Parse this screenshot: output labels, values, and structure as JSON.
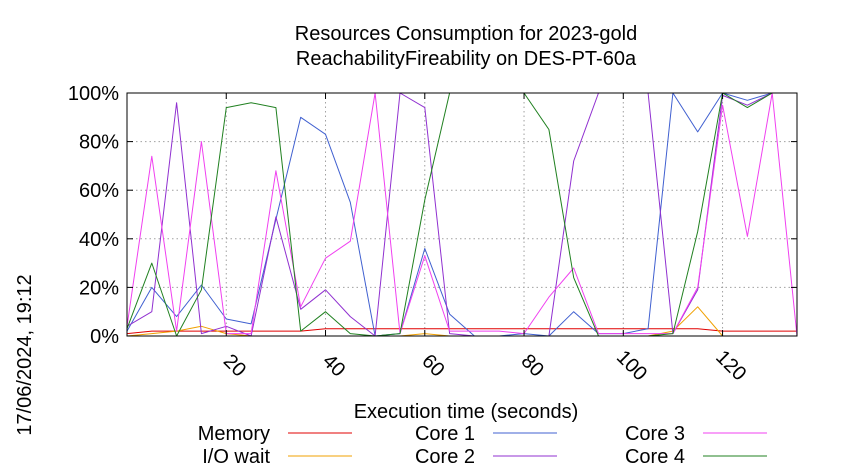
{
  "chart_data": {
    "type": "line",
    "title": [
      "Resources Consumption for 2023-gold",
      "ReachabilityFireability on DES-PT-60a"
    ],
    "xlabel": "Execution time (seconds)",
    "ylabel": "",
    "side_label": "17/06/2024, 19:12",
    "xlim": [
      0,
      135
    ],
    "ylim": [
      0,
      100
    ],
    "x_ticks": [
      20,
      40,
      60,
      80,
      100,
      120
    ],
    "y_ticks": [
      0,
      20,
      40,
      60,
      80,
      100
    ],
    "y_tick_labels": [
      "0%",
      "20%",
      "40%",
      "60%",
      "80%",
      "100%"
    ],
    "grid": true,
    "legend_position": "bottom",
    "series": [
      {
        "name": "Memory",
        "color": "#e00000",
        "points": [
          [
            0,
            1
          ],
          [
            5,
            2
          ],
          [
            10,
            2
          ],
          [
            15,
            2
          ],
          [
            20,
            2
          ],
          [
            25,
            2
          ],
          [
            30,
            2
          ],
          [
            35,
            2
          ],
          [
            40,
            3
          ],
          [
            45,
            3
          ],
          [
            50,
            3
          ],
          [
            55,
            3
          ],
          [
            60,
            3
          ],
          [
            65,
            3
          ],
          [
            70,
            3
          ],
          [
            75,
            3
          ],
          [
            80,
            3
          ],
          [
            85,
            3
          ],
          [
            90,
            3
          ],
          [
            95,
            3
          ],
          [
            100,
            3
          ],
          [
            105,
            3
          ],
          [
            110,
            3
          ],
          [
            115,
            3
          ],
          [
            120,
            2
          ],
          [
            125,
            2
          ],
          [
            130,
            2
          ],
          [
            135,
            2
          ]
        ]
      },
      {
        "name": "I/O wait",
        "color": "#f0a000",
        "points": [
          [
            0,
            0
          ],
          [
            5,
            1
          ],
          [
            10,
            2
          ],
          [
            15,
            4
          ],
          [
            20,
            1
          ],
          [
            25,
            0
          ],
          [
            30,
            0
          ],
          [
            35,
            0
          ],
          [
            40,
            0
          ],
          [
            45,
            0
          ],
          [
            50,
            0
          ],
          [
            55,
            0
          ],
          [
            60,
            1
          ],
          [
            65,
            0
          ],
          [
            70,
            0
          ],
          [
            75,
            0
          ],
          [
            80,
            0
          ],
          [
            85,
            0
          ],
          [
            90,
            0
          ],
          [
            95,
            0
          ],
          [
            100,
            0
          ],
          [
            105,
            0
          ],
          [
            110,
            2
          ],
          [
            115,
            12
          ],
          [
            120,
            0
          ],
          [
            125,
            0
          ],
          [
            130,
            0
          ],
          [
            135,
            0
          ]
        ]
      },
      {
        "name": "Core 1",
        "color": "#4060d0",
        "points": [
          [
            0,
            2
          ],
          [
            5,
            20
          ],
          [
            10,
            8
          ],
          [
            15,
            21
          ],
          [
            20,
            7
          ],
          [
            25,
            5
          ],
          [
            30,
            48
          ],
          [
            35,
            90
          ],
          [
            40,
            83
          ],
          [
            45,
            55
          ],
          [
            50,
            0
          ],
          [
            55,
            1
          ],
          [
            60,
            36
          ],
          [
            65,
            9
          ],
          [
            70,
            0
          ],
          [
            75,
            0
          ],
          [
            80,
            1
          ],
          [
            85,
            0
          ],
          [
            90,
            10
          ],
          [
            95,
            1
          ],
          [
            100,
            1
          ],
          [
            105,
            3
          ],
          [
            110,
            100
          ],
          [
            115,
            84
          ],
          [
            120,
            100
          ],
          [
            125,
            97
          ],
          [
            130,
            100
          ],
          [
            135,
            100
          ]
        ]
      },
      {
        "name": "Core 2",
        "color": "#9030d0",
        "points": [
          [
            0,
            4
          ],
          [
            5,
            10
          ],
          [
            10,
            96
          ],
          [
            15,
            1
          ],
          [
            20,
            4
          ],
          [
            25,
            0
          ],
          [
            30,
            49
          ],
          [
            35,
            11
          ],
          [
            40,
            19
          ],
          [
            45,
            8
          ],
          [
            50,
            0
          ],
          [
            55,
            100
          ],
          [
            60,
            94
          ],
          [
            65,
            1
          ],
          [
            70,
            0
          ],
          [
            75,
            0
          ],
          [
            80,
            0
          ],
          [
            85,
            0
          ],
          [
            90,
            72
          ],
          [
            95,
            100
          ],
          [
            100,
            100
          ],
          [
            105,
            100
          ],
          [
            110,
            1
          ],
          [
            115,
            19
          ],
          [
            120,
            99
          ],
          [
            125,
            95
          ],
          [
            130,
            100
          ],
          [
            135,
            100
          ]
        ]
      },
      {
        "name": "Core 3",
        "color": "#f040f0",
        "points": [
          [
            0,
            4
          ],
          [
            5,
            74
          ],
          [
            10,
            2
          ],
          [
            15,
            80
          ],
          [
            20,
            1
          ],
          [
            25,
            1
          ],
          [
            30,
            68
          ],
          [
            35,
            12
          ],
          [
            40,
            32
          ],
          [
            45,
            39
          ],
          [
            50,
            100
          ],
          [
            55,
            1
          ],
          [
            60,
            33
          ],
          [
            65,
            2
          ],
          [
            70,
            2
          ],
          [
            75,
            2
          ],
          [
            80,
            1
          ],
          [
            85,
            16
          ],
          [
            90,
            28
          ],
          [
            95,
            1
          ],
          [
            100,
            1
          ],
          [
            105,
            1
          ],
          [
            110,
            1
          ],
          [
            115,
            20
          ],
          [
            120,
            95
          ],
          [
            125,
            41
          ],
          [
            130,
            100
          ],
          [
            135,
            0
          ]
        ]
      },
      {
        "name": "Core 4",
        "color": "#208020",
        "points": [
          [
            0,
            3
          ],
          [
            5,
            30
          ],
          [
            10,
            0
          ],
          [
            15,
            19
          ],
          [
            20,
            94
          ],
          [
            25,
            96
          ],
          [
            30,
            94
          ],
          [
            35,
            2
          ],
          [
            40,
            10
          ],
          [
            45,
            1
          ],
          [
            50,
            0
          ],
          [
            55,
            1
          ],
          [
            60,
            56
          ],
          [
            65,
            100
          ],
          [
            70,
            100
          ],
          [
            75,
            100
          ],
          [
            80,
            100
          ],
          [
            85,
            85
          ],
          [
            90,
            24
          ],
          [
            95,
            0
          ],
          [
            100,
            0
          ],
          [
            105,
            0
          ],
          [
            110,
            1
          ],
          [
            115,
            43
          ],
          [
            120,
            100
          ],
          [
            125,
            94
          ],
          [
            130,
            100
          ],
          [
            135,
            100
          ]
        ]
      }
    ]
  }
}
